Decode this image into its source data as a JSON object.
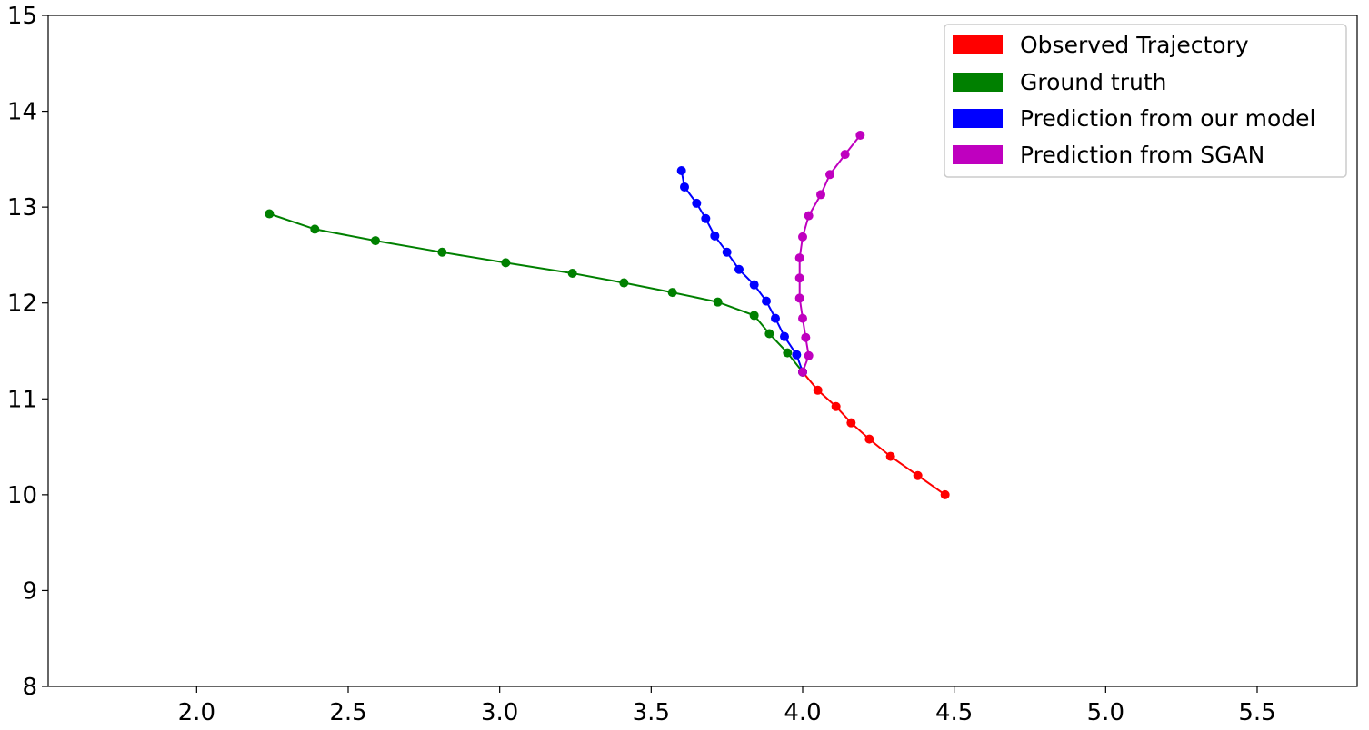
{
  "chart_data": {
    "type": "line",
    "title": "",
    "xlabel": "",
    "ylabel": "",
    "xlim": [
      1.51,
      5.83
    ],
    "ylim": [
      8,
      15
    ],
    "x_ticks": [
      2.0,
      2.5,
      3.0,
      3.5,
      4.0,
      4.5,
      5.0,
      5.5
    ],
    "x_tick_labels": [
      "2.0",
      "2.5",
      "3.0",
      "3.5",
      "4.0",
      "4.5",
      "5.0",
      "5.5"
    ],
    "y_ticks": [
      8,
      9,
      10,
      11,
      12,
      13,
      14,
      15
    ],
    "y_tick_labels": [
      "8",
      "9",
      "10",
      "11",
      "12",
      "13",
      "14",
      "15"
    ],
    "grid": false,
    "legend_position": "top-right",
    "series": [
      {
        "name": "Observed Trajectory",
        "color": "#ff0000",
        "x": [
          4.47,
          4.38,
          4.29,
          4.22,
          4.16,
          4.11,
          4.05,
          4.0
        ],
        "y": [
          10.0,
          10.2,
          10.4,
          10.58,
          10.75,
          10.92,
          11.09,
          11.28
        ]
      },
      {
        "name": "Ground truth",
        "color": "#008000",
        "x": [
          4.0,
          3.95,
          3.89,
          3.84,
          3.72,
          3.57,
          3.41,
          3.24,
          3.02,
          2.81,
          2.59,
          2.39,
          2.24
        ],
        "y": [
          11.28,
          11.48,
          11.68,
          11.87,
          12.01,
          12.11,
          12.21,
          12.31,
          12.42,
          12.53,
          12.65,
          12.77,
          12.93
        ]
      },
      {
        "name": "Prediction from our model",
        "color": "#0000ff",
        "x": [
          4.0,
          3.98,
          3.94,
          3.91,
          3.88,
          3.84,
          3.79,
          3.75,
          3.71,
          3.68,
          3.65,
          3.61,
          3.6
        ],
        "y": [
          11.28,
          11.46,
          11.65,
          11.84,
          12.02,
          12.19,
          12.35,
          12.53,
          12.7,
          12.88,
          13.04,
          13.21,
          13.38
        ]
      },
      {
        "name": "Prediction from SGAN",
        "color": "#bf00bf",
        "x": [
          4.0,
          4.02,
          4.01,
          4.0,
          3.99,
          3.99,
          3.99,
          4.0,
          4.02,
          4.06,
          4.09,
          4.14,
          4.19
        ],
        "y": [
          11.28,
          11.45,
          11.64,
          11.84,
          12.05,
          12.26,
          12.47,
          12.69,
          12.91,
          13.13,
          13.34,
          13.55,
          13.75
        ]
      }
    ]
  }
}
